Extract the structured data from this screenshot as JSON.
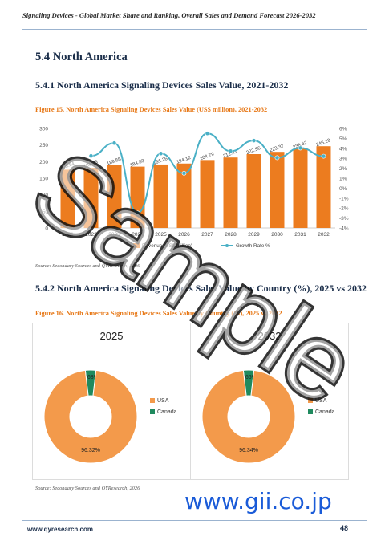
{
  "header": {
    "title": "Signaling Devices - Global Market Share and Ranking, Overall Sales and Demand Forecast 2026-2032"
  },
  "section": {
    "heading": "5.4  North America",
    "sub1": "5.4.1  North America Signaling Devices Sales Value, 2021-2032",
    "sub2": "5.4.2  North America Signaling Devices Sales Value by Country (%), 2025 vs 2032"
  },
  "figure15": {
    "caption": "Figure 15.   North America Signaling Devices Sales Value (US$ million), 2021-2032",
    "source": "Source: Secondary Sources and QYResearch, 2026"
  },
  "figure16": {
    "caption": "Figure 16.   North America Signaling Devices Sales Value by Country (%), 2025 vs 2032",
    "source": "Source: Secondary Sources and QYResearch, 2026"
  },
  "chart_data": [
    {
      "type": "bar",
      "categories": [
        "2021",
        "2022",
        "2023",
        "2024",
        "2025",
        "2026",
        "2027",
        "2028",
        "2029",
        "2030",
        "2031",
        "2032"
      ],
      "series": [
        {
          "name": "Revenue (US$ million)",
          "type": "bar",
          "values": [
            175.64,
            181.33,
            189.55,
            184.83,
            191.26,
            194.12,
            204.79,
            212.41,
            222.56,
            229.37,
            238.62,
            246.29
          ],
          "color": "#ec7c1f"
        },
        {
          "name": "Growth Rate %",
          "type": "line",
          "axis": "right",
          "values": [
            null,
            3.24,
            4.53,
            -2.49,
            3.48,
            1.5,
            5.5,
            3.72,
            4.78,
            3.06,
            4.03,
            3.21
          ],
          "color": "#4ab0c6"
        }
      ],
      "ylim": [
        0,
        300
      ],
      "yticks": [
        0,
        50,
        100,
        150,
        200,
        250,
        300
      ],
      "y2lim": [
        -4,
        6
      ],
      "y2ticks": [
        "-4%",
        "-3%",
        "-2%",
        "-1%",
        "0%",
        "1%",
        "2%",
        "3%",
        "4%",
        "5%",
        "6%"
      ],
      "grid": false,
      "legend": "bottom"
    },
    {
      "type": "pie",
      "title": "2025",
      "categories": [
        "USA",
        "Canada"
      ],
      "values": [
        96.32,
        3.68
      ],
      "labels": [
        "96.32%",
        "3.68%"
      ],
      "colors": [
        "#f39a4b",
        "#1f8a5e"
      ],
      "legend": "right"
    },
    {
      "type": "pie",
      "title": "2032",
      "categories": [
        "USA",
        "Canada"
      ],
      "values": [
        96.34,
        3.66
      ],
      "labels": [
        "96.34%",
        "3.66%"
      ],
      "colors": [
        "#f39a4b",
        "#1f8a5e"
      ],
      "legend": "right"
    }
  ],
  "watermark": {
    "text": "Sample"
  },
  "footer": {
    "url": "www.qyresearch.com",
    "page": "48",
    "brand": "www.gii.co.jp"
  }
}
